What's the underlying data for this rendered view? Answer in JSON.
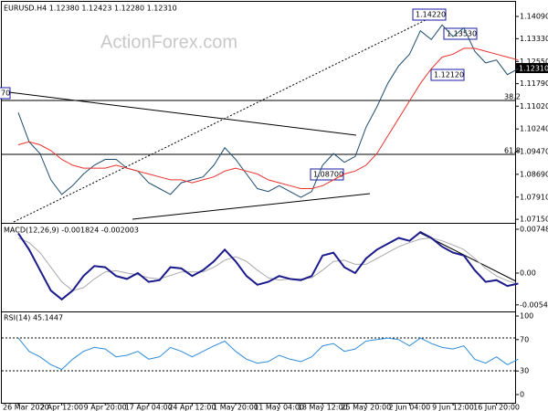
{
  "watermark": "ActionForex.com",
  "chart_data": [
    {
      "type": "line",
      "title": "EURUSD.H4 1.12380 1.12423 1.12280 1.12310",
      "annotations": [
        "1.14220",
        "1.13530",
        "1.12120",
        "1.08700",
        "70",
        "38.2",
        "61.8",
        "1.12310"
      ],
      "categories": [
        "26 Mar 2020",
        null,
        null,
        null,
        "2 Apr 12:00",
        null,
        null,
        null,
        "9 Apr 20:00",
        null,
        null,
        null,
        "17 Apr 04:00",
        null,
        null,
        null,
        "24 Apr 12:00",
        null,
        null,
        null,
        "1 May 20:00",
        null,
        null,
        null,
        "11 May 04:00",
        null,
        null,
        null,
        "18 May 12:00",
        null,
        null,
        null,
        "25 May 20:00",
        null,
        null,
        null,
        "2 Jun 04:00",
        null,
        null,
        null,
        "9 Jun 12:00",
        null,
        null,
        null,
        "16 Jun 20:00",
        null,
        null
      ],
      "ylim": [
        1.0706,
        1.1459
      ],
      "yticks": [
        {
          "value": 1.0715,
          "label": "1.07150"
        },
        {
          "value": 1.0791,
          "label": "1.07910"
        },
        {
          "value": 1.0869,
          "label": "1.08690"
        },
        {
          "value": 1.0947,
          "label": "1.09470"
        },
        {
          "value": 1.1024,
          "label": "1.10240"
        },
        {
          "value": 1.1102,
          "label": "1.11020"
        },
        {
          "value": 1.1179,
          "label": "1.11790"
        },
        {
          "value": 1.1255,
          "label": "1.12550"
        },
        {
          "value": 1.1333,
          "label": "1.13330"
        },
        {
          "value": 1.1409,
          "label": "1.14090"
        }
      ],
      "grid": false,
      "series": [
        {
          "color": "#1e4c6e",
          "values": [
            1.108,
            1.098,
            1.094,
            1.085,
            1.08,
            1.083,
            1.087,
            1.09,
            1.092,
            1.092,
            1.089,
            1.088,
            1.084,
            1.082,
            1.08,
            1.084,
            1.085,
            1.086,
            1.09,
            1.096,
            1.092,
            1.087,
            1.082,
            1.081,
            1.083,
            1.081,
            1.079,
            1.081,
            1.09,
            1.094,
            1.091,
            1.093,
            1.103,
            1.11,
            1.118,
            1.124,
            1.128,
            1.136,
            1.133,
            1.138,
            1.134,
            1.137,
            1.129,
            1.125,
            1.126,
            1.121,
            1.123
          ]
        },
        {
          "color": "#e8322d",
          "values": [
            1.097,
            1.098,
            1.097,
            1.095,
            1.092,
            1.09,
            1.089,
            1.089,
            1.089,
            1.09,
            1.089,
            1.088,
            1.087,
            1.086,
            1.085,
            1.085,
            1.084,
            1.085,
            1.086,
            1.088,
            1.089,
            1.088,
            1.087,
            1.085,
            1.084,
            1.083,
            1.082,
            1.082,
            1.083,
            1.085,
            1.087,
            1.088,
            1.09,
            1.094,
            1.1,
            1.106,
            1.112,
            1.118,
            1.123,
            1.127,
            1.128,
            1.13,
            1.13,
            1.129,
            1.128,
            1.127,
            1.126
          ]
        }
      ]
    },
    {
      "type": "line",
      "title": "MACD(12,26,9) -0.001824 -0.002003",
      "ylim": [
        -0.00671,
        0.00811
      ],
      "yticks": [
        -0.005431,
        {
          "value": 0,
          "label": "0.00"
        },
        0.007485
      ],
      "grid": false,
      "series": [
        {
          "color": "#aaaaaa",
          "values": [
            0.006,
            0.0052,
            0.0035,
            0.001,
            -0.0015,
            -0.003,
            -0.0025,
            -0.001,
            0.0002,
            0.0004,
            0.0,
            -0.0003,
            -0.0008,
            -0.001,
            -0.0004,
            0.0002,
            0.0002,
            0.0002,
            0.001,
            0.0022,
            0.0028,
            0.002,
            0.0005,
            -0.0008,
            -0.0012,
            -0.001,
            -0.001,
            -0.0008,
            0.0005,
            0.002,
            0.0022,
            0.0015,
            0.0015,
            0.0025,
            0.0035,
            0.0045,
            0.0052,
            0.0058,
            0.006,
            0.0055,
            0.0048,
            0.004,
            0.0025,
            0.0008,
            -0.0005,
            -0.0013,
            -0.0019
          ]
        },
        {
          "color": "#1a1a8c",
          "values": [
            0.0068,
            0.004,
            0.0005,
            -0.003,
            -0.0045,
            -0.003,
            -0.0005,
            0.0012,
            0.001,
            -0.0005,
            -0.001,
            0.0,
            -0.0015,
            -0.0012,
            0.001,
            0.0008,
            -0.0005,
            0.0005,
            0.002,
            0.004,
            0.002,
            -0.0005,
            -0.002,
            -0.0015,
            -0.0005,
            -0.001,
            -0.0012,
            -0.0005,
            0.003,
            0.0035,
            0.001,
            0.0,
            0.0025,
            0.004,
            0.005,
            0.006,
            0.0055,
            0.007,
            0.006,
            0.0045,
            0.0035,
            0.003,
            0.0005,
            -0.0015,
            -0.0012,
            -0.0022,
            -0.0018
          ]
        }
      ]
    },
    {
      "type": "line",
      "title": "RSI(14) 45.1447",
      "ylim": [
        0,
        100
      ],
      "yticks": [
        0,
        30,
        70,
        100
      ],
      "grid": false,
      "series": [
        {
          "color": "#2e8bd8",
          "values": [
            72,
            55,
            48,
            38,
            32,
            45,
            55,
            60,
            58,
            48,
            50,
            55,
            45,
            48,
            60,
            55,
            48,
            55,
            62,
            68,
            55,
            45,
            40,
            42,
            50,
            45,
            42,
            48,
            62,
            65,
            55,
            58,
            68,
            70,
            72,
            70,
            62,
            72,
            65,
            60,
            58,
            62,
            45,
            40,
            48,
            38,
            45
          ]
        }
      ]
    }
  ]
}
